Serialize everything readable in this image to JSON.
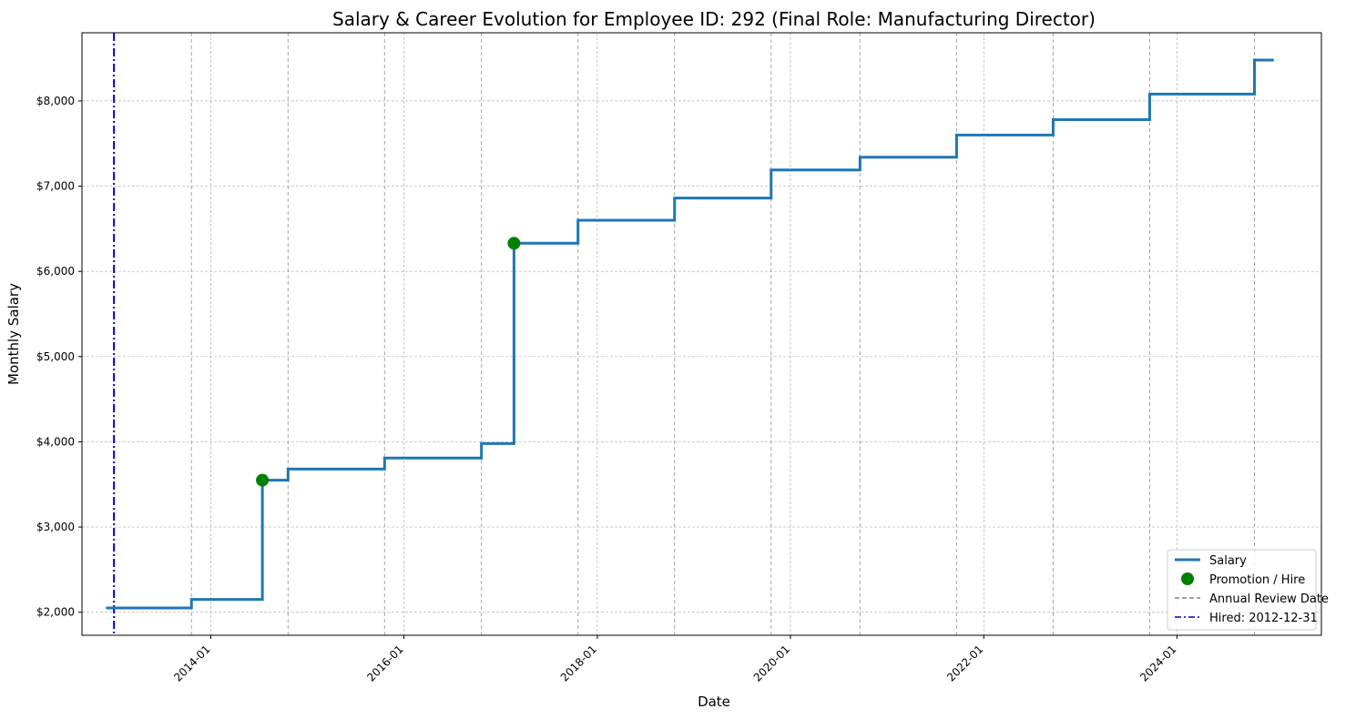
{
  "chart_data": {
    "type": "line",
    "title": "Salary & Career Evolution for Employee ID: 292 (Final Role: Manufacturing Director)",
    "xlabel": "Date",
    "ylabel": "Monthly Salary",
    "x_axis_type": "date",
    "xlim": [
      "2012-09-01",
      "2025-06-30"
    ],
    "ylim": [
      1730,
      8800
    ],
    "x_ticks": [
      "2014-01",
      "2016-01",
      "2018-01",
      "2020-01",
      "2022-01",
      "2024-01"
    ],
    "y_ticks": [
      2000,
      3000,
      4000,
      5000,
      6000,
      7000,
      8000
    ],
    "y_tick_labels": [
      "$2,000",
      "$3,000",
      "$4,000",
      "$5,000",
      "$6,000",
      "$7,000",
      "$8,000"
    ],
    "grid": true,
    "legend_position": "bottom-right",
    "series": [
      {
        "name": "Salary",
        "style": "step",
        "color": "#1f77b4",
        "points": [
          {
            "date": "2012-12-01",
            "value": 2050
          },
          {
            "date": "2013-10-20",
            "value": 2150
          },
          {
            "date": "2014-07-15",
            "value": 3550
          },
          {
            "date": "2014-10-20",
            "value": 3680
          },
          {
            "date": "2015-10-20",
            "value": 3810
          },
          {
            "date": "2016-10-20",
            "value": 3980
          },
          {
            "date": "2017-02-20",
            "value": 6330
          },
          {
            "date": "2017-10-20",
            "value": 6600
          },
          {
            "date": "2018-10-20",
            "value": 6860
          },
          {
            "date": "2019-10-20",
            "value": 7190
          },
          {
            "date": "2020-09-20",
            "value": 7340
          },
          {
            "date": "2021-09-20",
            "value": 7600
          },
          {
            "date": "2022-09-20",
            "value": 7780
          },
          {
            "date": "2023-09-20",
            "value": 8080
          },
          {
            "date": "2024-10-20",
            "value": 8480
          },
          {
            "date": "2025-01-01",
            "value": 8480
          }
        ]
      },
      {
        "name": "Promotion / Hire",
        "style": "markers",
        "color": "#008000",
        "points": [
          {
            "date": "2014-07-15",
            "value": 3550
          },
          {
            "date": "2017-02-20",
            "value": 6330
          }
        ]
      },
      {
        "name": "Annual Review Date",
        "style": "vertical-dashed",
        "color": "#808080",
        "dates": [
          "2013-10-20",
          "2014-10-20",
          "2015-10-20",
          "2016-10-20",
          "2017-10-20",
          "2018-10-20",
          "2019-10-20",
          "2020-09-20",
          "2021-09-20",
          "2022-09-20",
          "2023-09-20",
          "2024-10-20"
        ]
      },
      {
        "name": "Hired: 2012-12-31",
        "style": "vertical-dashdot",
        "color": "#0000cc",
        "date": "2012-12-31"
      }
    ]
  }
}
